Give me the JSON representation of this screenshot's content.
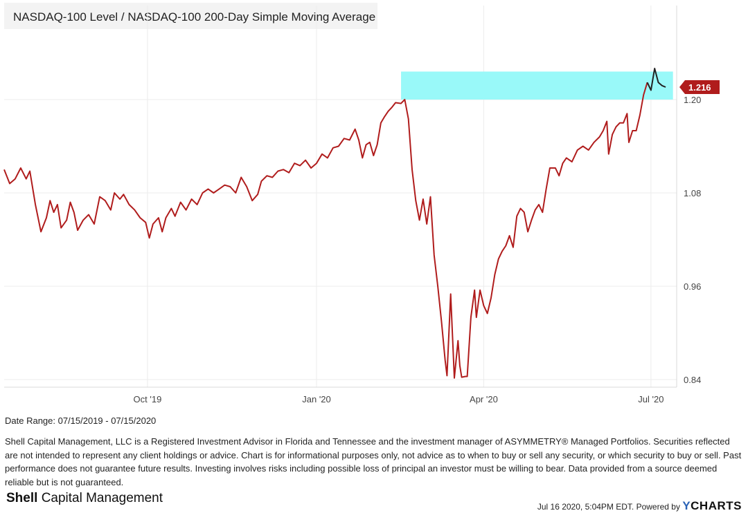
{
  "chart_data": {
    "type": "line",
    "title": "NASDAQ-100 Level / NASDAQ-100 200-Day Simple Moving Average",
    "xlabel": "",
    "ylabel": "",
    "x_start": "2019-07-15",
    "x_end": "2020-07-15",
    "ylim": [
      0.82,
      1.3
    ],
    "y_ticks": [
      0.84,
      0.96,
      1.08,
      1.2
    ],
    "y_tick_labels": [
      "0.84",
      "0.96",
      "1.08",
      "1.20"
    ],
    "x_ticks": [
      {
        "label": "Oct '19",
        "day": 78
      },
      {
        "label": "Jan '20",
        "day": 170
      },
      {
        "label": "Apr '20",
        "day": 261
      },
      {
        "label": "Jul '20",
        "day": 352
      }
    ],
    "grid": true,
    "highlight_band": {
      "y_from": 1.2,
      "y_to": 1.236,
      "day_from": 216,
      "day_to": 364,
      "color": "#99f9f9"
    },
    "last_value": {
      "value": 1.216,
      "label": "1.216",
      "color": "#b01c1c"
    },
    "line_color": "#b01c1c",
    "highlight_line_color": "#222222",
    "highlight_from_day": 350,
    "series": [
      {
        "name": "NASDAQ-100 Level / NASDAQ-100 200-Day Simple Moving Average",
        "points": [
          [
            0,
            1.11
          ],
          [
            3,
            1.092
          ],
          [
            6,
            1.098
          ],
          [
            9,
            1.112
          ],
          [
            12,
            1.098
          ],
          [
            14,
            1.108
          ],
          [
            17,
            1.065
          ],
          [
            20,
            1.03
          ],
          [
            23,
            1.048
          ],
          [
            25,
            1.07
          ],
          [
            27,
            1.055
          ],
          [
            29,
            1.065
          ],
          [
            31,
            1.035
          ],
          [
            34,
            1.045
          ],
          [
            36,
            1.068
          ],
          [
            38,
            1.055
          ],
          [
            40,
            1.032
          ],
          [
            43,
            1.045
          ],
          [
            46,
            1.052
          ],
          [
            49,
            1.04
          ],
          [
            52,
            1.075
          ],
          [
            55,
            1.07
          ],
          [
            58,
            1.058
          ],
          [
            60,
            1.08
          ],
          [
            63,
            1.072
          ],
          [
            65,
            1.078
          ],
          [
            68,
            1.065
          ],
          [
            71,
            1.058
          ],
          [
            74,
            1.048
          ],
          [
            77,
            1.042
          ],
          [
            79,
            1.022
          ],
          [
            81,
            1.04
          ],
          [
            84,
            1.048
          ],
          [
            86,
            1.03
          ],
          [
            88,
            1.048
          ],
          [
            91,
            1.06
          ],
          [
            93,
            1.05
          ],
          [
            96,
            1.068
          ],
          [
            99,
            1.058
          ],
          [
            102,
            1.072
          ],
          [
            105,
            1.065
          ],
          [
            108,
            1.08
          ],
          [
            111,
            1.085
          ],
          [
            114,
            1.08
          ],
          [
            117,
            1.085
          ],
          [
            120,
            1.09
          ],
          [
            123,
            1.088
          ],
          [
            126,
            1.08
          ],
          [
            129,
            1.1
          ],
          [
            132,
            1.088
          ],
          [
            135,
            1.07
          ],
          [
            138,
            1.078
          ],
          [
            140,
            1.095
          ],
          [
            143,
            1.102
          ],
          [
            146,
            1.1
          ],
          [
            149,
            1.108
          ],
          [
            152,
            1.11
          ],
          [
            155,
            1.106
          ],
          [
            158,
            1.118
          ],
          [
            161,
            1.115
          ],
          [
            164,
            1.122
          ],
          [
            167,
            1.112
          ],
          [
            170,
            1.118
          ],
          [
            173,
            1.13
          ],
          [
            176,
            1.125
          ],
          [
            179,
            1.138
          ],
          [
            182,
            1.14
          ],
          [
            185,
            1.15
          ],
          [
            188,
            1.148
          ],
          [
            191,
            1.162
          ],
          [
            193,
            1.148
          ],
          [
            195,
            1.125
          ],
          [
            197,
            1.142
          ],
          [
            199,
            1.145
          ],
          [
            201,
            1.128
          ],
          [
            203,
            1.142
          ],
          [
            205,
            1.17
          ],
          [
            207,
            1.178
          ],
          [
            209,
            1.185
          ],
          [
            211,
            1.19
          ],
          [
            213,
            1.196
          ],
          [
            216,
            1.195
          ],
          [
            218,
            1.2
          ],
          [
            220,
            1.175
          ],
          [
            222,
            1.11
          ],
          [
            224,
            1.07
          ],
          [
            226,
            1.045
          ],
          [
            228,
            1.072
          ],
          [
            230,
            1.04
          ],
          [
            232,
            1.075
          ],
          [
            234,
            1.0
          ],
          [
            236,
            0.96
          ],
          [
            238,
            0.915
          ],
          [
            240,
            0.865
          ],
          [
            241,
            0.845
          ],
          [
            243,
            0.95
          ],
          [
            245,
            0.842
          ],
          [
            247,
            0.89
          ],
          [
            248,
            0.858
          ],
          [
            249,
            0.843
          ],
          [
            251,
            0.844
          ],
          [
            252,
            0.844
          ],
          [
            254,
            0.92
          ],
          [
            256,
            0.955
          ],
          [
            257,
            0.92
          ],
          [
            259,
            0.955
          ],
          [
            261,
            0.935
          ],
          [
            263,
            0.925
          ],
          [
            265,
            0.945
          ],
          [
            267,
            0.975
          ],
          [
            269,
            0.995
          ],
          [
            271,
            1.005
          ],
          [
            273,
            1.012
          ],
          [
            275,
            1.025
          ],
          [
            277,
            1.01
          ],
          [
            279,
            1.05
          ],
          [
            281,
            1.06
          ],
          [
            283,
            1.055
          ],
          [
            285,
            1.03
          ],
          [
            287,
            1.045
          ],
          [
            289,
            1.058
          ],
          [
            291,
            1.065
          ],
          [
            293,
            1.055
          ],
          [
            295,
            1.085
          ],
          [
            297,
            1.112
          ],
          [
            300,
            1.112
          ],
          [
            302,
            1.102
          ],
          [
            304,
            1.118
          ],
          [
            306,
            1.125
          ],
          [
            309,
            1.12
          ],
          [
            312,
            1.135
          ],
          [
            315,
            1.14
          ],
          [
            318,
            1.135
          ],
          [
            321,
            1.145
          ],
          [
            324,
            1.152
          ],
          [
            326,
            1.16
          ],
          [
            328,
            1.172
          ],
          [
            329,
            1.13
          ],
          [
            331,
            1.155
          ],
          [
            333,
            1.165
          ],
          [
            335,
            1.17
          ],
          [
            337,
            1.17
          ],
          [
            339,
            1.182
          ],
          [
            340,
            1.145
          ],
          [
            342,
            1.16
          ],
          [
            344,
            1.16
          ],
          [
            346,
            1.18
          ],
          [
            348,
            1.206
          ],
          [
            350,
            1.222
          ],
          [
            352,
            1.212
          ],
          [
            354,
            1.24
          ],
          [
            356,
            1.222
          ],
          [
            358,
            1.218
          ],
          [
            360,
            1.216
          ]
        ]
      }
    ]
  },
  "footer": {
    "date_range": "Date Range: 07/15/2019 - 07/15/2020",
    "disclaimer": "Shell Capital Management, LLC is a Registered Investment Advisor in Florida and Tennessee and the investment manager of ASYMMETRY® Managed Portfolios. Securities reflected are not intended to represent any client holdings or advice. Chart is for informational purposes only, not advice as to when to buy or sell any security, or which security to buy or sell. Past performance does not guarantee future results. Investing involves risks including possible loss of principal an investor must be willing to bear. Data provided from a source deemed reliable but is not guaranteed.",
    "brand_bold": "Shell",
    "brand_rest": "Capital Management",
    "timestamp": "Jul 16 2020, 5:04PM EDT. Powered by",
    "powered_logo_y": "Y",
    "powered_logo_rest": "CHARTS"
  }
}
